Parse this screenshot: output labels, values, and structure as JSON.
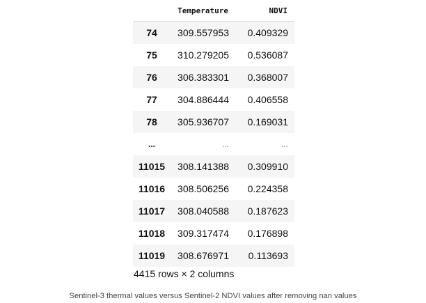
{
  "table": {
    "columns": [
      "",
      "Temperature",
      "NDVI"
    ],
    "rows": [
      {
        "index": "74",
        "temperature": "309.557953",
        "ndvi": "0.409329"
      },
      {
        "index": "75",
        "temperature": "310.279205",
        "ndvi": "0.536087"
      },
      {
        "index": "76",
        "temperature": "306.383301",
        "ndvi": "0.368007"
      },
      {
        "index": "77",
        "temperature": "304.886444",
        "ndvi": "0.406558"
      },
      {
        "index": "78",
        "temperature": "305.936707",
        "ndvi": "0.169031"
      },
      {
        "index": "...",
        "temperature": "...",
        "ndvi": "..."
      },
      {
        "index": "11015",
        "temperature": "308.141388",
        "ndvi": "0.309910"
      },
      {
        "index": "11016",
        "temperature": "308.506256",
        "ndvi": "0.224358"
      },
      {
        "index": "11017",
        "temperature": "308.040588",
        "ndvi": "0.187623"
      },
      {
        "index": "11018",
        "temperature": "309.317474",
        "ndvi": "0.176898"
      },
      {
        "index": "11019",
        "temperature": "308.676971",
        "ndvi": "0.113693"
      }
    ],
    "shape_text": "4415 rows × 2 columns"
  },
  "caption": "Sentinel-3 thermal values versus Sentinel-2 NDVI values after removing nan values"
}
